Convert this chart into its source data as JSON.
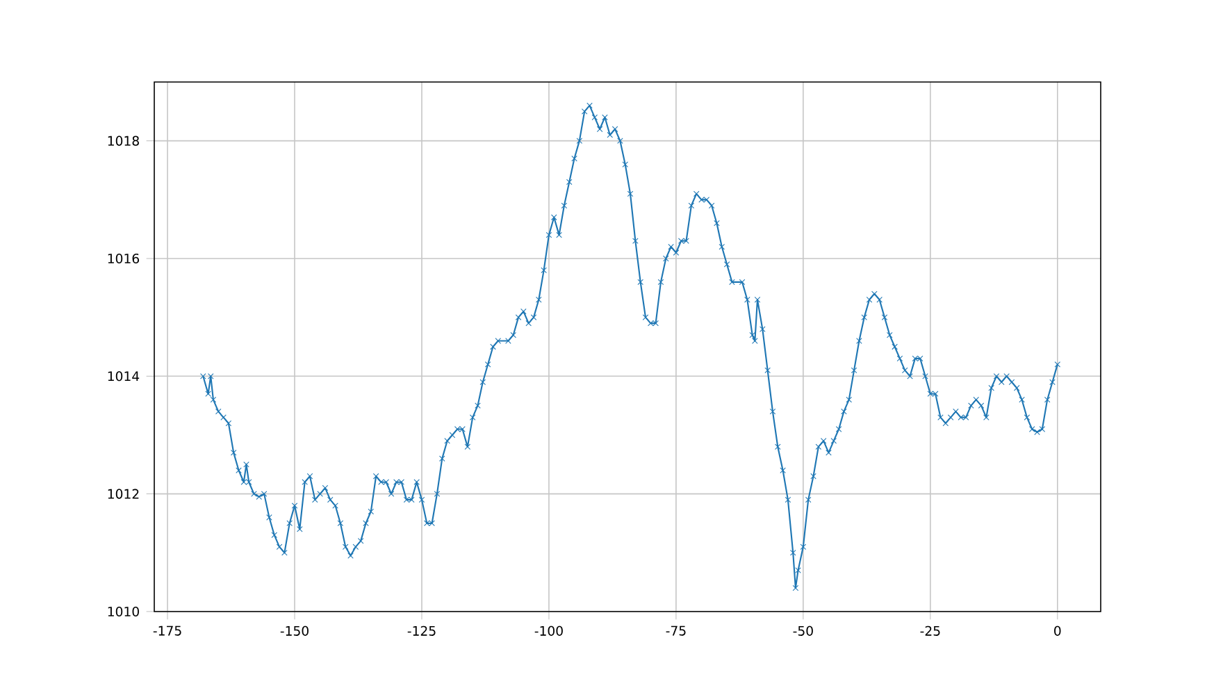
{
  "chart_data": {
    "type": "line",
    "x": [
      -168,
      -167,
      -166.5,
      -166,
      -165,
      -164,
      -163,
      -162,
      -161,
      -160,
      -159.5,
      -159,
      -158,
      -157,
      -156,
      -155,
      -154,
      -153,
      -152,
      -151,
      -150,
      -149,
      -148,
      -147,
      -146,
      -145,
      -144,
      -143,
      -142,
      -141,
      -140,
      -139,
      -138,
      -137,
      -136,
      -135,
      -134,
      -133,
      -132,
      -131,
      -130,
      -129,
      -128,
      -127,
      -126,
      -125,
      -124,
      -123,
      -122,
      -121,
      -120,
      -119,
      -118,
      -117,
      -116,
      -115,
      -114,
      -113,
      -112,
      -111,
      -110,
      -108,
      -107,
      -106,
      -105,
      -104,
      -103,
      -102,
      -101,
      -100,
      -99,
      -98,
      -97,
      -96,
      -95,
      -94,
      -93,
      -92,
      -91,
      -90,
      -89,
      -88,
      -87,
      -86,
      -85,
      -84,
      -83,
      -82,
      -81,
      -80,
      -79,
      -78,
      -77,
      -76,
      -75,
      -74,
      -73,
      -72,
      -71,
      -70,
      -69,
      -68,
      -67,
      -66,
      -65,
      -64,
      -62,
      -61,
      -60,
      -59.5,
      -59,
      -58,
      -57,
      -56,
      -55,
      -54,
      -53,
      -52,
      -51.5,
      -51,
      -50,
      -49,
      -48,
      -47,
      -46,
      -45,
      -44,
      -43,
      -42,
      -41,
      -40,
      -39,
      -38,
      -37,
      -36,
      -35,
      -34,
      -33,
      -32,
      -31,
      -30,
      -29,
      -28,
      -27,
      -26,
      -25,
      -24,
      -23,
      -22,
      -21,
      -20,
      -19,
      -18,
      -17,
      -16,
      -15,
      -14,
      -13,
      -12,
      -11,
      -10,
      -9,
      -8,
      -7,
      -6,
      -5,
      -4,
      -3,
      -2,
      -1,
      0
    ],
    "series": [
      {
        "color": "#1f77b4",
        "values": [
          1014.0,
          1013.7,
          1014.0,
          1013.6,
          1013.4,
          1013.3,
          1013.2,
          1012.7,
          1012.4,
          1012.2,
          1012.5,
          1012.2,
          1012.0,
          1011.95,
          1012.0,
          1011.6,
          1011.3,
          1011.1,
          1011.0,
          1011.5,
          1011.8,
          1011.4,
          1012.2,
          1012.3,
          1011.9,
          1012.0,
          1012.1,
          1011.9,
          1011.8,
          1011.5,
          1011.1,
          1010.95,
          1011.1,
          1011.2,
          1011.5,
          1011.7,
          1012.3,
          1012.2,
          1012.2,
          1012.0,
          1012.2,
          1012.2,
          1011.9,
          1011.9,
          1012.2,
          1011.9,
          1011.5,
          1011.5,
          1012.0,
          1012.6,
          1012.9,
          1013.0,
          1013.1,
          1013.1,
          1012.8,
          1013.3,
          1013.5,
          1013.9,
          1014.2,
          1014.5,
          1014.6,
          1014.6,
          1014.7,
          1015.0,
          1015.1,
          1014.9,
          1015.0,
          1015.3,
          1015.8,
          1016.4,
          1016.7,
          1016.4,
          1016.9,
          1017.3,
          1017.7,
          1018.0,
          1018.5,
          1018.6,
          1018.4,
          1018.2,
          1018.4,
          1018.1,
          1018.2,
          1018.0,
          1017.6,
          1017.1,
          1016.3,
          1015.6,
          1015.0,
          1014.9,
          1014.9,
          1015.6,
          1016.0,
          1016.2,
          1016.1,
          1016.3,
          1016.3,
          1016.9,
          1017.1,
          1017.0,
          1017.0,
          1016.9,
          1016.6,
          1016.2,
          1015.9,
          1015.6,
          1015.6,
          1015.3,
          1014.7,
          1014.6,
          1015.3,
          1014.8,
          1014.1,
          1013.4,
          1012.8,
          1012.4,
          1011.9,
          1011.0,
          1010.4,
          1010.7,
          1011.1,
          1011.9,
          1012.3,
          1012.8,
          1012.9,
          1012.7,
          1012.9,
          1013.1,
          1013.4,
          1013.6,
          1014.1,
          1014.6,
          1015.0,
          1015.3,
          1015.4,
          1015.3,
          1015.0,
          1014.7,
          1014.5,
          1014.3,
          1014.1,
          1014.0,
          1014.3,
          1014.3,
          1014.0,
          1013.7,
          1013.7,
          1013.3,
          1013.2,
          1013.3,
          1013.4,
          1013.3,
          1013.3,
          1013.5,
          1013.6,
          1013.5,
          1013.3,
          1013.8,
          1014.0,
          1013.9,
          1014.0,
          1013.9,
          1013.8,
          1013.6,
          1013.3,
          1013.1,
          1013.05,
          1013.1,
          1013.6,
          1013.9,
          1014.2
        ]
      }
    ],
    "xlim": [
      -177.6,
      8.5
    ],
    "ylim": [
      1010,
      1019
    ],
    "xticks": [
      -175,
      -150,
      -125,
      -100,
      -75,
      -50,
      -25,
      0
    ],
    "yticks": [
      1010,
      1012,
      1014,
      1016,
      1018
    ],
    "grid": true,
    "marker": "cross",
    "line_style": "solid"
  }
}
